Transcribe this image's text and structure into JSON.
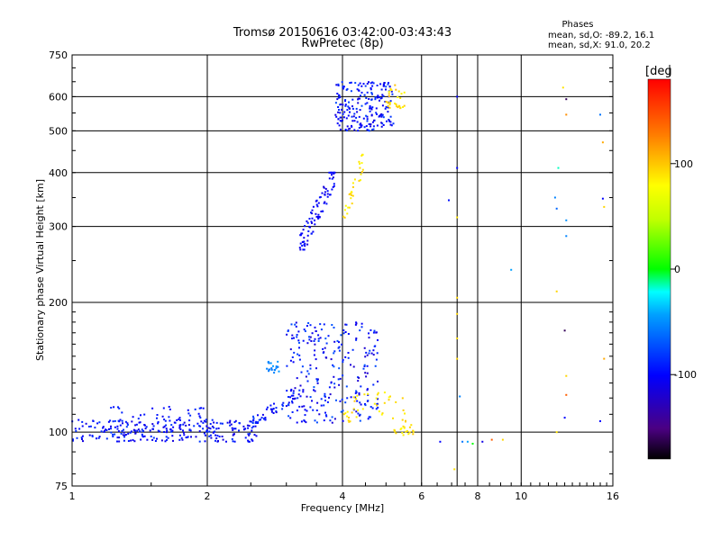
{
  "chart_data": {
    "type": "scatter",
    "title": "Tromsø 20150616 03:42:00-03:43:43",
    "subtitle": "RwPretec (8p)",
    "xlabel": "Frequency [MHz]",
    "ylabel": "Stationary phase Virtual Height [km]",
    "x_scale": "log2",
    "y_scale": "log",
    "xlim": [
      1,
      16
    ],
    "ylim": [
      75,
      750
    ],
    "x_ticks": [
      1,
      2,
      4,
      6,
      8,
      10,
      16
    ],
    "x_tick_labels": [
      "1",
      "2",
      "4",
      "6",
      "8",
      "10",
      "16"
    ],
    "x_grid": [
      1,
      2,
      4,
      6,
      7.2,
      8,
      10,
      16
    ],
    "y_ticks": [
      75,
      100,
      200,
      300,
      400,
      500,
      600,
      750
    ],
    "y_tick_labels": [
      "75",
      "100",
      "200",
      "300",
      "400",
      "500",
      "600",
      "750"
    ],
    "grid": true,
    "legend": {
      "header": "Phases",
      "line1": "mean, sd,O: -89.2, 16.1",
      "line2": "mean, sd,X:  91.0, 20.2",
      "placement": "top-right"
    },
    "colorbar": {
      "label": "[deg",
      "range": [
        -180,
        180
      ],
      "ticks": [
        100,
        0,
        -100
      ],
      "tick_labels": [
        "100",
        "0",
        "-100"
      ]
    },
    "clusters": [
      {
        "desc": "E layer trace",
        "x": [
          1.0,
          2.6
        ],
        "y": [
          95,
          107
        ],
        "count": 240,
        "phase": [
          -115,
          -80
        ],
        "trend": "flat"
      },
      {
        "desc": "sporadic E patches",
        "x": [
          1.2,
          2.0
        ],
        "y": [
          100,
          115
        ],
        "count": 60,
        "phase": [
          -110,
          -85
        ],
        "trend": "flat"
      },
      {
        "desc": "E to F transition",
        "x": [
          2.5,
          3.3
        ],
        "y": [
          105,
          125
        ],
        "count": 50,
        "phase": [
          -110,
          -75
        ],
        "trend": "rising"
      },
      {
        "desc": "F1 spread cluster",
        "x": [
          3.0,
          4.8
        ],
        "y": [
          105,
          180
        ],
        "count": 260,
        "phase": [
          -120,
          -70
        ],
        "trend": "flat"
      },
      {
        "desc": "cyan blob",
        "x": [
          2.7,
          2.9
        ],
        "y": [
          136,
          146
        ],
        "count": 20,
        "phase": [
          -60,
          -45
        ],
        "trend": "flat"
      },
      {
        "desc": "F2 O-mode curve",
        "x": [
          3.2,
          3.85
        ],
        "y": [
          265,
          400
        ],
        "count": 90,
        "phase": [
          -115,
          -90
        ],
        "trend": "rising"
      },
      {
        "desc": "F2 upper O cluster",
        "x": [
          3.85,
          5.2
        ],
        "y": [
          500,
          650
        ],
        "count": 210,
        "phase": [
          -115,
          -75
        ],
        "trend": "flat"
      },
      {
        "desc": "X-mode yellow group",
        "x": [
          4.0,
          5.6
        ],
        "y": [
          105,
          125
        ],
        "count": 40,
        "phase": [
          80,
          100
        ],
        "trend": "flat"
      },
      {
        "desc": "X-mode yellow near 5.5",
        "x": [
          5.2,
          5.8
        ],
        "y": [
          98,
          104
        ],
        "count": 20,
        "phase": [
          80,
          100
        ],
        "trend": "flat"
      },
      {
        "desc": "X-mode upper group",
        "x": [
          5.0,
          5.5
        ],
        "y": [
          560,
          640
        ],
        "count": 30,
        "phase": [
          80,
          105
        ],
        "trend": "flat"
      },
      {
        "desc": "X-mode column 4.4",
        "x": [
          4.0,
          4.5
        ],
        "y": [
          310,
          440
        ],
        "count": 30,
        "phase": [
          80,
          100
        ],
        "trend": "rising"
      }
    ],
    "points": [
      {
        "x": 7.2,
        "y": 600,
        "phase": -100
      },
      {
        "x": 7.2,
        "y": 410,
        "phase": -100
      },
      {
        "x": 7.2,
        "y": 315,
        "phase": 90
      },
      {
        "x": 7.2,
        "y": 205,
        "phase": 95
      },
      {
        "x": 7.2,
        "y": 188,
        "phase": 95
      },
      {
        "x": 7.2,
        "y": 165,
        "phase": 95
      },
      {
        "x": 7.2,
        "y": 148,
        "phase": 95
      },
      {
        "x": 7.3,
        "y": 121,
        "phase": -55
      },
      {
        "x": 7.1,
        "y": 82,
        "phase": 90
      },
      {
        "x": 6.9,
        "y": 345,
        "phase": -95
      },
      {
        "x": 6.6,
        "y": 95,
        "phase": -100
      },
      {
        "x": 7.4,
        "y": 95,
        "phase": -60
      },
      {
        "x": 7.6,
        "y": 95,
        "phase": -45
      },
      {
        "x": 7.8,
        "y": 94,
        "phase": 0
      },
      {
        "x": 8.2,
        "y": 95,
        "phase": -110
      },
      {
        "x": 8.6,
        "y": 96,
        "phase": 140
      },
      {
        "x": 9.1,
        "y": 96,
        "phase": 95
      },
      {
        "x": 9.5,
        "y": 238,
        "phase": -45
      },
      {
        "x": 12.4,
        "y": 630,
        "phase": 90
      },
      {
        "x": 12.6,
        "y": 592,
        "phase": -160
      },
      {
        "x": 12.6,
        "y": 545,
        "phase": 120
      },
      {
        "x": 12.1,
        "y": 410,
        "phase": -15
      },
      {
        "x": 11.9,
        "y": 350,
        "phase": -55
      },
      {
        "x": 12.0,
        "y": 330,
        "phase": -65
      },
      {
        "x": 12.6,
        "y": 310,
        "phase": -50
      },
      {
        "x": 12.6,
        "y": 285,
        "phase": -55
      },
      {
        "x": 12.0,
        "y": 212,
        "phase": 95
      },
      {
        "x": 12.5,
        "y": 172,
        "phase": -160
      },
      {
        "x": 12.6,
        "y": 135,
        "phase": 95
      },
      {
        "x": 12.6,
        "y": 122,
        "phase": 140
      },
      {
        "x": 12.0,
        "y": 100,
        "phase": 90
      },
      {
        "x": 12.5,
        "y": 108,
        "phase": -100
      },
      {
        "x": 15.0,
        "y": 545,
        "phase": -60
      },
      {
        "x": 15.2,
        "y": 470,
        "phase": 110
      },
      {
        "x": 15.2,
        "y": 348,
        "phase": -100
      },
      {
        "x": 15.3,
        "y": 333,
        "phase": 95
      },
      {
        "x": 15.3,
        "y": 148,
        "phase": 110
      },
      {
        "x": 15.0,
        "y": 106,
        "phase": -100
      }
    ]
  }
}
